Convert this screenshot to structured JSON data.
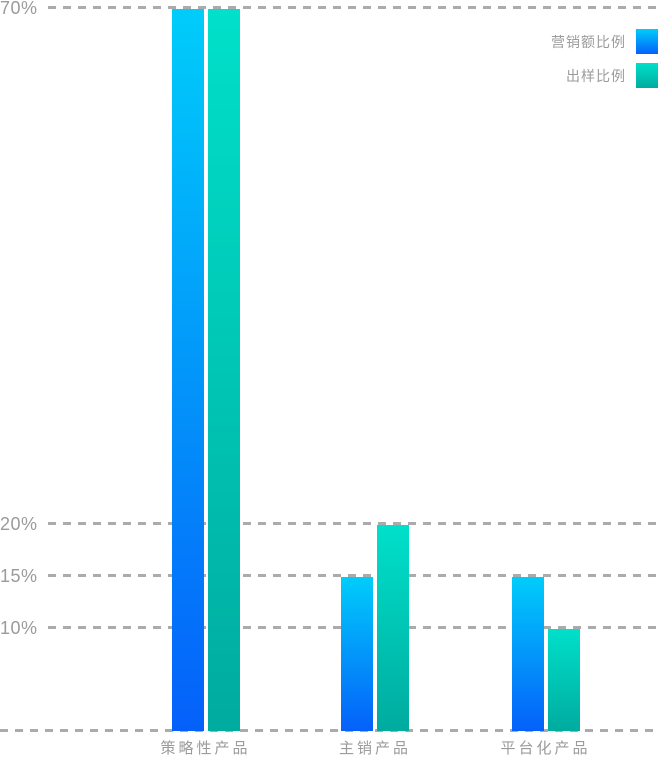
{
  "chart_data": {
    "type": "bar",
    "title": "",
    "xlabel": "",
    "ylabel": "",
    "categories": [
      "策略性产品",
      "主销产品",
      "平台化产品"
    ],
    "series": [
      {
        "name": "营销额比例",
        "values": [
          70,
          15,
          15
        ],
        "color_top": "#00cdfa",
        "color_bottom": "#0560fa"
      },
      {
        "name": "出样比例",
        "values": [
          70,
          20,
          10
        ],
        "color_top": "#00e0ca",
        "color_bottom": "#00ab9f"
      }
    ],
    "ylim": [
      0,
      70
    ],
    "yticks": [
      70,
      20,
      15,
      10
    ],
    "ytick_labels": [
      "70%",
      "20%",
      "15%",
      "10%"
    ],
    "grid": "horizontal-dashed",
    "legend_position": "top-right"
  },
  "colors": {
    "text": "#9b9b9b",
    "gridline": "#ababab",
    "background": "#ffffff"
  }
}
